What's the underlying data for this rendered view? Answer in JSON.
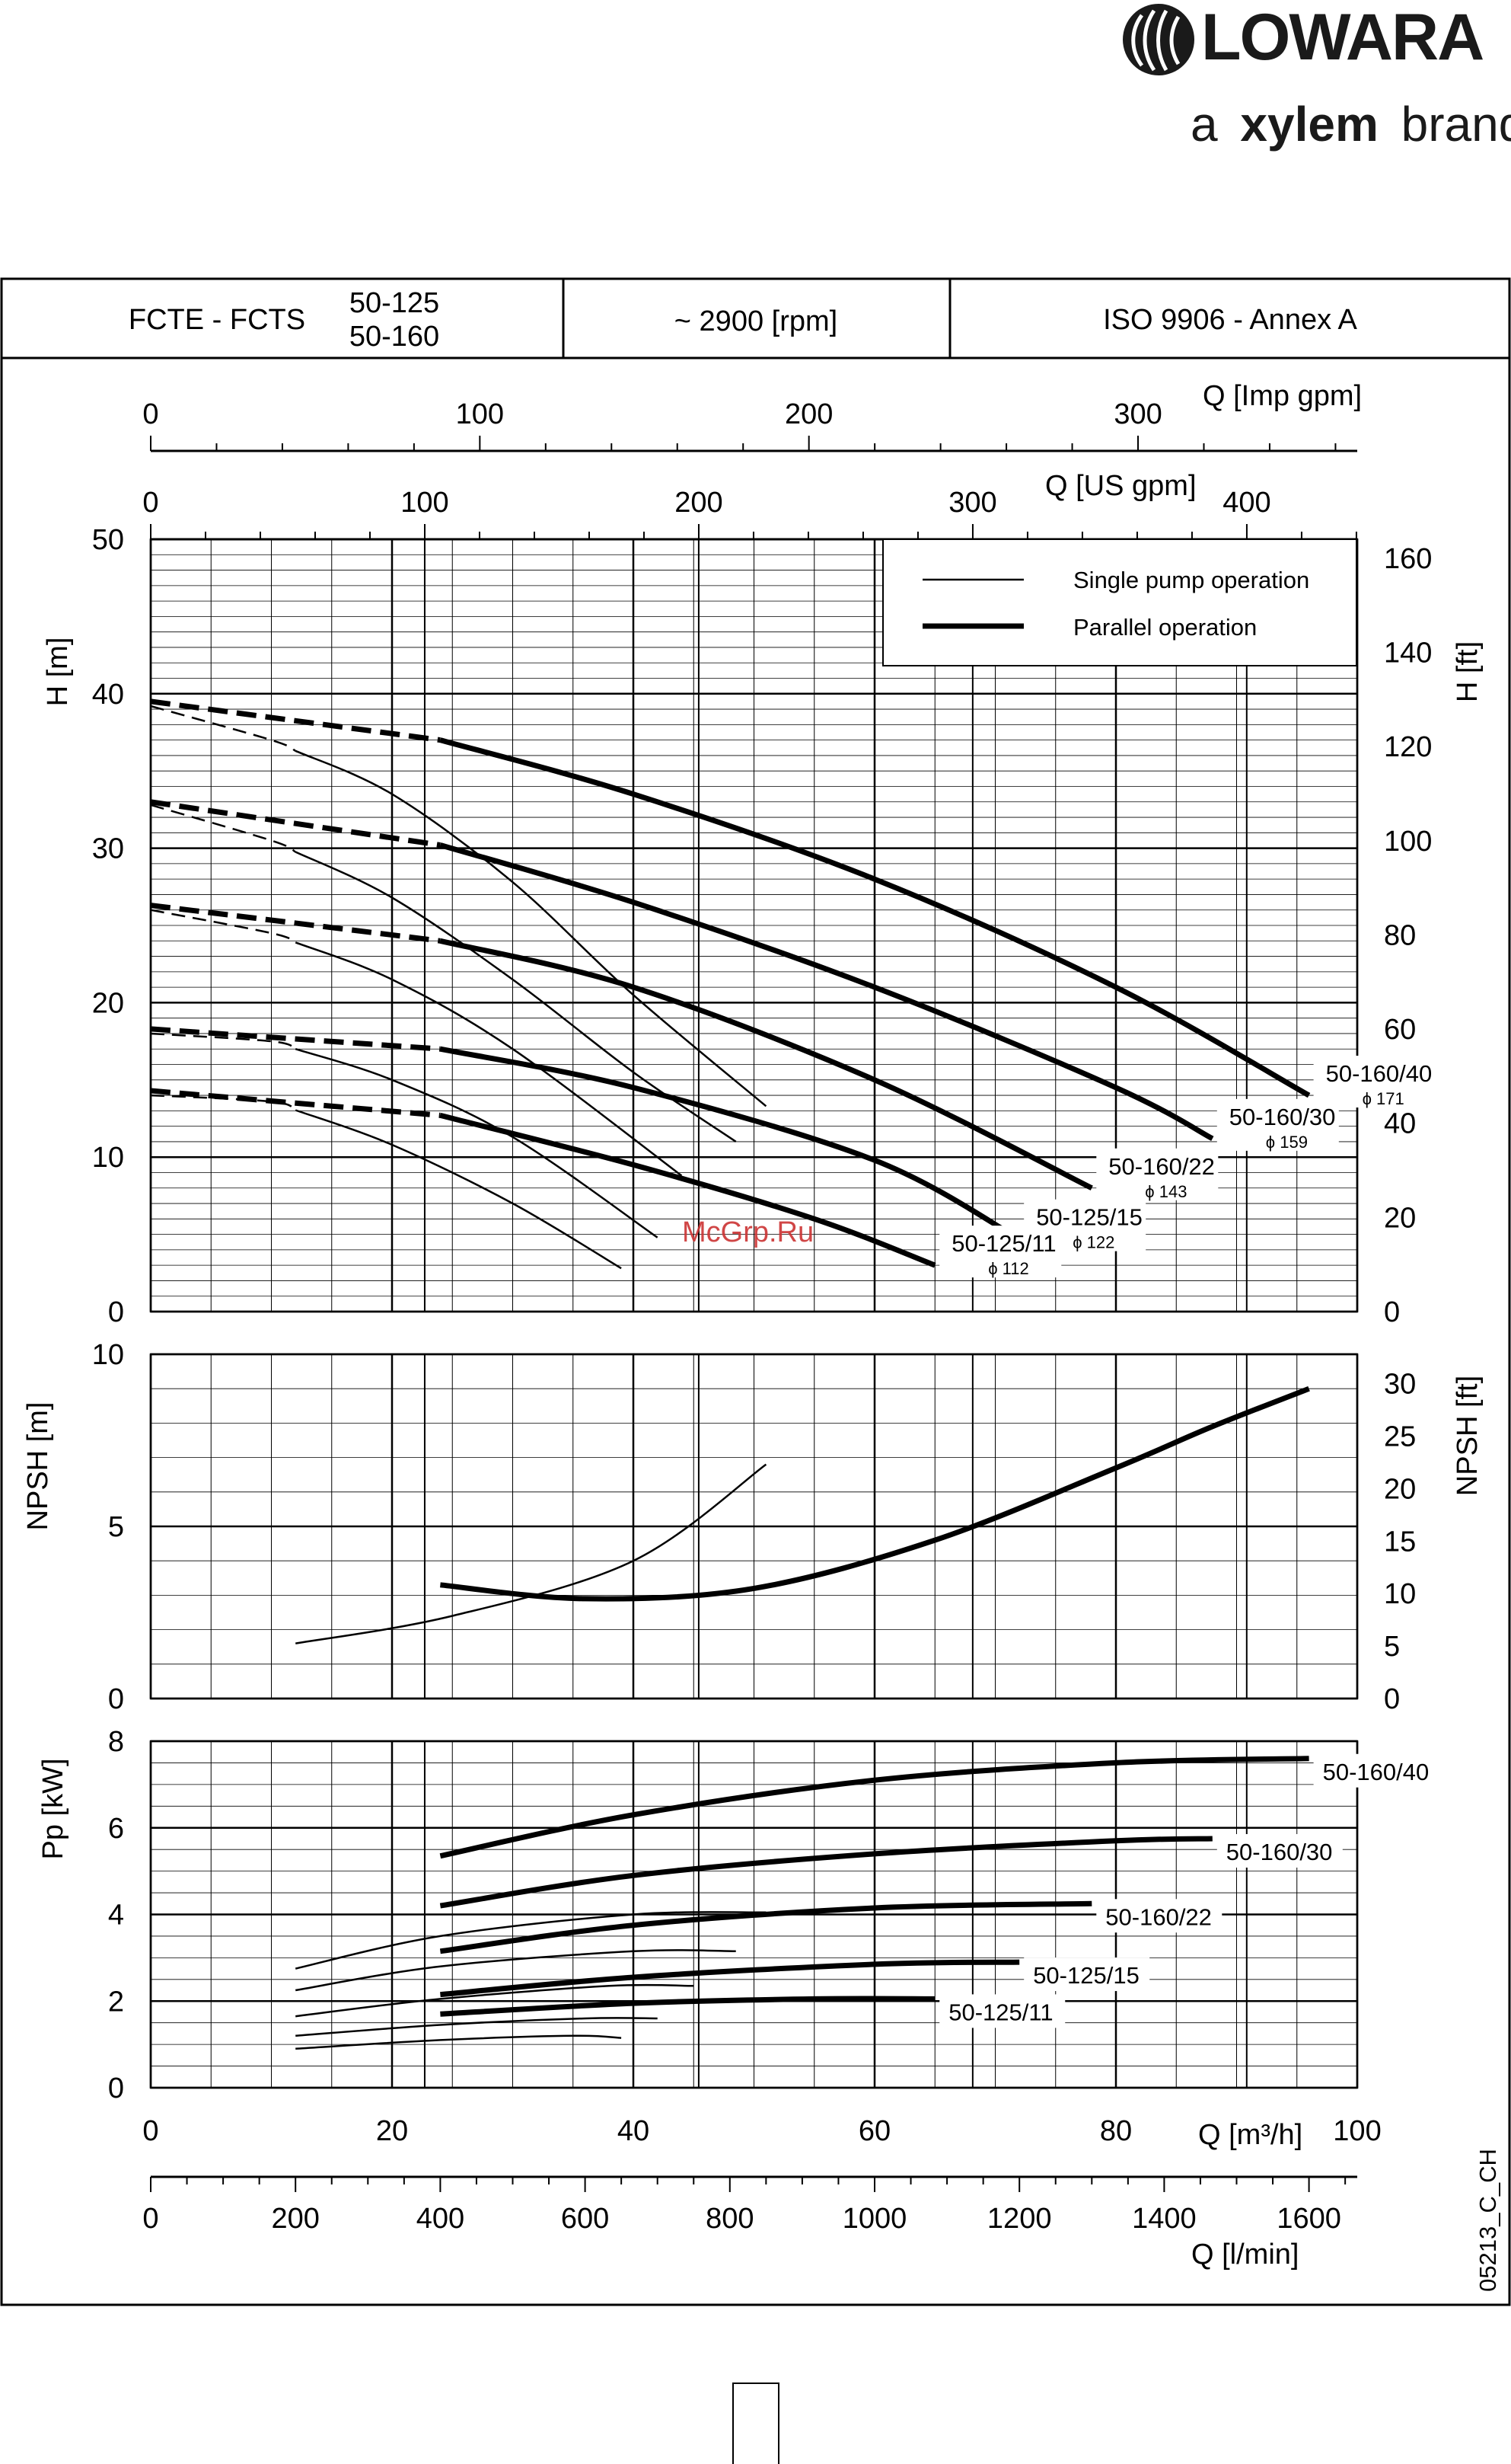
{
  "brand": {
    "name": "LOWARA",
    "tagline_prefix": "a",
    "tagline_brand": "xylem",
    "tagline_suffix": "brand"
  },
  "header": {
    "series": "FCTE - FCTS",
    "models_line1": "50-125",
    "models_line2": "50-160",
    "speed": "~ 2900 [rpm]",
    "standard": "ISO 9906 - Annex A"
  },
  "watermark": "McGrp.Ru",
  "drawing_code": "05213_C_CH",
  "legend": {
    "single_label": "Single pump operation",
    "parallel_label": "Parallel operation"
  },
  "axes": {
    "q_m3h_label": "Q [m³/h]",
    "q_m3h_ticks": [
      "0",
      "20",
      "40",
      "60",
      "80",
      "100"
    ],
    "q_lmin_label": "Q [l/min]",
    "q_lmin_ticks": [
      "0",
      "200",
      "400",
      "600",
      "800",
      "1000",
      "1200",
      "1400",
      "1600"
    ],
    "q_us_label": "Q [US gpm]",
    "q_us_ticks": [
      "0",
      "100",
      "200",
      "300",
      "400"
    ],
    "q_imp_label": "Q [Imp gpm]",
    "q_imp_ticks": [
      "0",
      "100",
      "200",
      "300"
    ],
    "h_m_label": "H [m]",
    "h_m_ticks": [
      "0",
      "10",
      "20",
      "30",
      "40",
      "50"
    ],
    "h_ft_label": "H [ft]",
    "h_ft_ticks": [
      "0",
      "20",
      "40",
      "60",
      "80",
      "100",
      "120",
      "140",
      "160"
    ],
    "npsh_m_label": "NPSH [m]",
    "npsh_m_ticks": [
      "0",
      "5",
      "10"
    ],
    "npsh_ft_label": "NPSH [ft]",
    "npsh_ft_ticks": [
      "0",
      "5",
      "10",
      "15",
      "20",
      "25",
      "30"
    ],
    "p_label": "Pp [kW]",
    "p_ticks": [
      "0",
      "2",
      "4",
      "6",
      "8"
    ]
  },
  "chart_data": [
    {
      "type": "line",
      "panel": "head",
      "x_unit": "m3/h",
      "xlim": [
        0,
        100
      ],
      "ylim": [
        0,
        50
      ],
      "y_unit": "m",
      "series": [
        {
          "model": "50-160/40",
          "diameter": "ϕ 171",
          "mode": "single",
          "x": [
            0,
            10,
            20,
            30,
            40,
            51
          ],
          "y": [
            39.2,
            37.0,
            33.5,
            27.8,
            20.5,
            13.3
          ]
        },
        {
          "model": "50-160/40",
          "diameter": "ϕ 171",
          "mode": "parallel",
          "x": [
            0,
            24,
            40,
            60,
            80,
            96
          ],
          "y": [
            39.5,
            37.0,
            33.5,
            28.0,
            21.0,
            14.0
          ]
        },
        {
          "model": "50-160/30",
          "diameter": "ϕ 159",
          "mode": "single",
          "x": [
            0,
            10,
            20,
            30,
            40,
            48.5
          ],
          "y": [
            32.8,
            30.5,
            26.8,
            21.5,
            15.5,
            11.0
          ]
        },
        {
          "model": "50-160/30",
          "diameter": "ϕ 159",
          "mode": "parallel",
          "x": [
            0,
            24,
            40,
            60,
            80,
            88
          ],
          "y": [
            33.0,
            30.2,
            26.5,
            21.0,
            14.5,
            11.2
          ]
        },
        {
          "model": "50-160/22",
          "diameter": "ϕ 143",
          "mode": "single",
          "x": [
            0,
            10,
            20,
            30,
            44
          ],
          "y": [
            26.0,
            24.5,
            21.5,
            17.0,
            8.8
          ]
        },
        {
          "model": "50-160/22",
          "diameter": "ϕ 143",
          "mode": "parallel",
          "x": [
            0,
            24,
            40,
            60,
            78
          ],
          "y": [
            26.3,
            24.0,
            21.0,
            15.0,
            8.0
          ]
        },
        {
          "model": "50-125/15",
          "diameter": "ϕ 122",
          "mode": "single",
          "x": [
            0,
            10,
            20,
            30,
            42
          ],
          "y": [
            18.0,
            17.5,
            15.0,
            11.3,
            4.8
          ]
        },
        {
          "model": "50-125/15",
          "diameter": "ϕ 122",
          "mode": "parallel",
          "x": [
            0,
            24,
            40,
            60,
            72
          ],
          "y": [
            18.3,
            17.0,
            14.5,
            9.8,
            4.7
          ]
        },
        {
          "model": "50-125/11",
          "diameter": "ϕ 112",
          "mode": "single",
          "x": [
            0,
            10,
            20,
            30,
            39
          ],
          "y": [
            14.0,
            13.6,
            10.8,
            7.0,
            2.8
          ]
        },
        {
          "model": "50-125/11",
          "diameter": "ϕ 112",
          "mode": "parallel",
          "x": [
            0,
            24,
            40,
            55,
            65
          ],
          "y": [
            14.3,
            12.7,
            9.5,
            6.0,
            3.0
          ]
        }
      ]
    },
    {
      "type": "line",
      "panel": "npsh",
      "x_unit": "m3/h",
      "xlim": [
        0,
        100
      ],
      "ylim": [
        0,
        10
      ],
      "y_unit": "m",
      "series": [
        {
          "mode": "single",
          "x": [
            12,
            25,
            40,
            51
          ],
          "y": [
            1.6,
            2.4,
            4.0,
            6.8
          ]
        },
        {
          "mode": "parallel",
          "x": [
            24,
            36,
            50,
            65,
            80,
            88,
            96
          ],
          "y": [
            3.3,
            2.9,
            3.2,
            4.6,
            6.7,
            7.9,
            9.0
          ]
        }
      ]
    },
    {
      "type": "line",
      "panel": "power",
      "x_unit": "m3/h",
      "xlim": [
        0,
        100
      ],
      "ylim": [
        0,
        8
      ],
      "y_unit": "kW",
      "series": [
        {
          "model": "50-160/40",
          "mode": "single",
          "x": [
            12,
            24,
            40,
            51
          ],
          "y": [
            2.75,
            3.5,
            4.0,
            4.05
          ]
        },
        {
          "model": "50-160/40",
          "mode": "parallel",
          "x": [
            24,
            40,
            60,
            80,
            96
          ],
          "y": [
            5.35,
            6.3,
            7.1,
            7.5,
            7.6
          ]
        },
        {
          "model": "50-160/30",
          "mode": "single",
          "x": [
            12,
            24,
            40,
            48.5
          ],
          "y": [
            2.25,
            2.8,
            3.15,
            3.15
          ]
        },
        {
          "model": "50-160/30",
          "mode": "parallel",
          "x": [
            24,
            40,
            60,
            80,
            88
          ],
          "y": [
            4.2,
            4.9,
            5.4,
            5.7,
            5.75
          ]
        },
        {
          "model": "50-160/22",
          "mode": "single",
          "x": [
            12,
            24,
            38,
            45
          ],
          "y": [
            1.65,
            2.05,
            2.35,
            2.35
          ]
        },
        {
          "model": "50-160/22",
          "mode": "parallel",
          "x": [
            24,
            40,
            60,
            78
          ],
          "y": [
            3.15,
            3.75,
            4.15,
            4.25
          ]
        },
        {
          "model": "50-125/15",
          "mode": "single",
          "x": [
            12,
            24,
            36,
            42
          ],
          "y": [
            1.2,
            1.45,
            1.6,
            1.6
          ]
        },
        {
          "model": "50-125/15",
          "mode": "parallel",
          "x": [
            24,
            40,
            60,
            72
          ],
          "y": [
            2.15,
            2.55,
            2.85,
            2.9
          ]
        },
        {
          "model": "50-125/11",
          "mode": "single",
          "x": [
            12,
            24,
            35,
            39
          ],
          "y": [
            0.9,
            1.1,
            1.2,
            1.15
          ]
        },
        {
          "model": "50-125/11",
          "mode": "parallel",
          "x": [
            24,
            40,
            55,
            65
          ],
          "y": [
            1.7,
            1.95,
            2.05,
            2.05
          ]
        }
      ]
    }
  ]
}
